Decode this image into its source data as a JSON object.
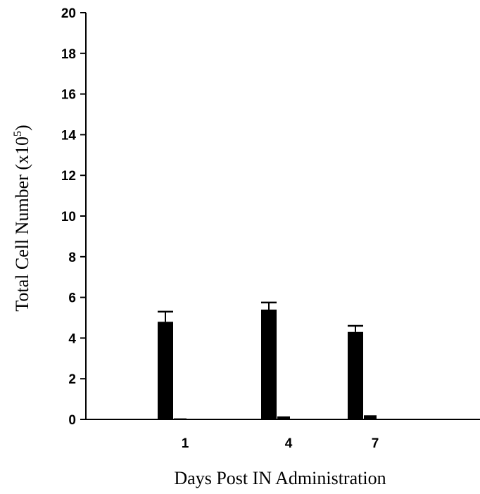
{
  "chart_data": {
    "type": "bar",
    "title": "",
    "xlabel": "Days Post IN Administration",
    "ylabel_main": "Total Cell Number (x10",
    "ylabel_sup": "5",
    "ylabel_end": ")",
    "categories": [
      "1",
      "4",
      "7"
    ],
    "ylim": [
      0,
      20
    ],
    "yticks": [
      "0",
      "2",
      "4",
      "6",
      "8",
      "10",
      "12",
      "14",
      "16",
      "18",
      "20"
    ],
    "series": [
      {
        "values": [
          4.8,
          5.4,
          4.3
        ],
        "errors": [
          0.5,
          0.35,
          0.3
        ],
        "color": "#000000"
      },
      {
        "values": [
          0.05,
          0.15,
          0.2
        ],
        "errors": [
          0,
          0,
          0
        ],
        "color": "#000000"
      }
    ],
    "grid": false,
    "legend": "none"
  }
}
